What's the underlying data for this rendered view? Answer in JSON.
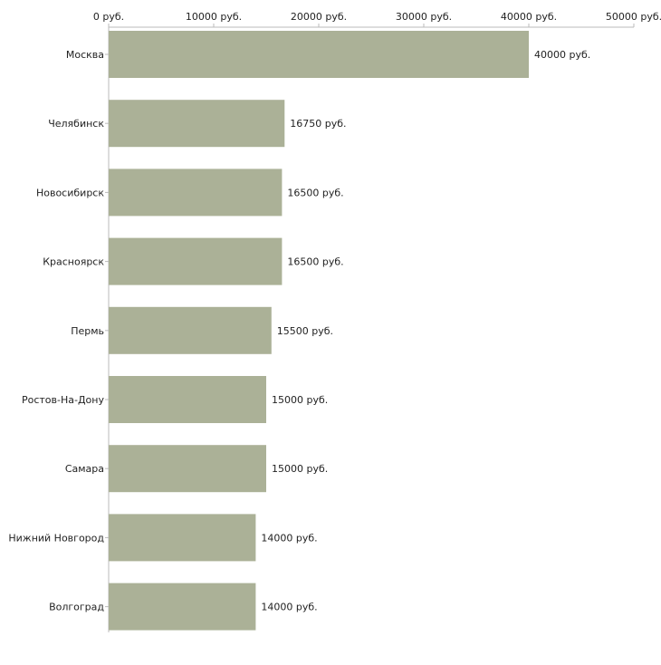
{
  "chart_data": {
    "type": "bar",
    "orientation": "horizontal",
    "categories": [
      "Москва",
      "Челябинск",
      "Новосибирск",
      "Красноярск",
      "Пермь",
      "Ростов-На-Дону",
      "Самара",
      "Нижний Новгород",
      "Волгоград"
    ],
    "values": [
      40000,
      16750,
      16500,
      16500,
      15500,
      15000,
      15000,
      14000,
      14000
    ],
    "value_labels": [
      "40000 руб.",
      "16750 руб.",
      "16500 руб.",
      "16500 руб.",
      "15500 руб.",
      "15000 руб.",
      "15000 руб.",
      "14000 руб.",
      "14000 руб."
    ],
    "x_ticks": [
      0,
      10000,
      20000,
      30000,
      40000,
      50000
    ],
    "x_tick_labels": [
      "0 руб.",
      "10000 руб.",
      "20000 руб.",
      "30000 руб.",
      "40000 руб.",
      "50000 руб."
    ],
    "xlim": [
      0,
      50000
    ],
    "axis_position": "top",
    "title": "",
    "xlabel": "",
    "ylabel": "",
    "grid": false,
    "legend": "none",
    "bar_color": "#abb197",
    "axis_color": "#bbbbbb",
    "text_color": "#222222"
  }
}
